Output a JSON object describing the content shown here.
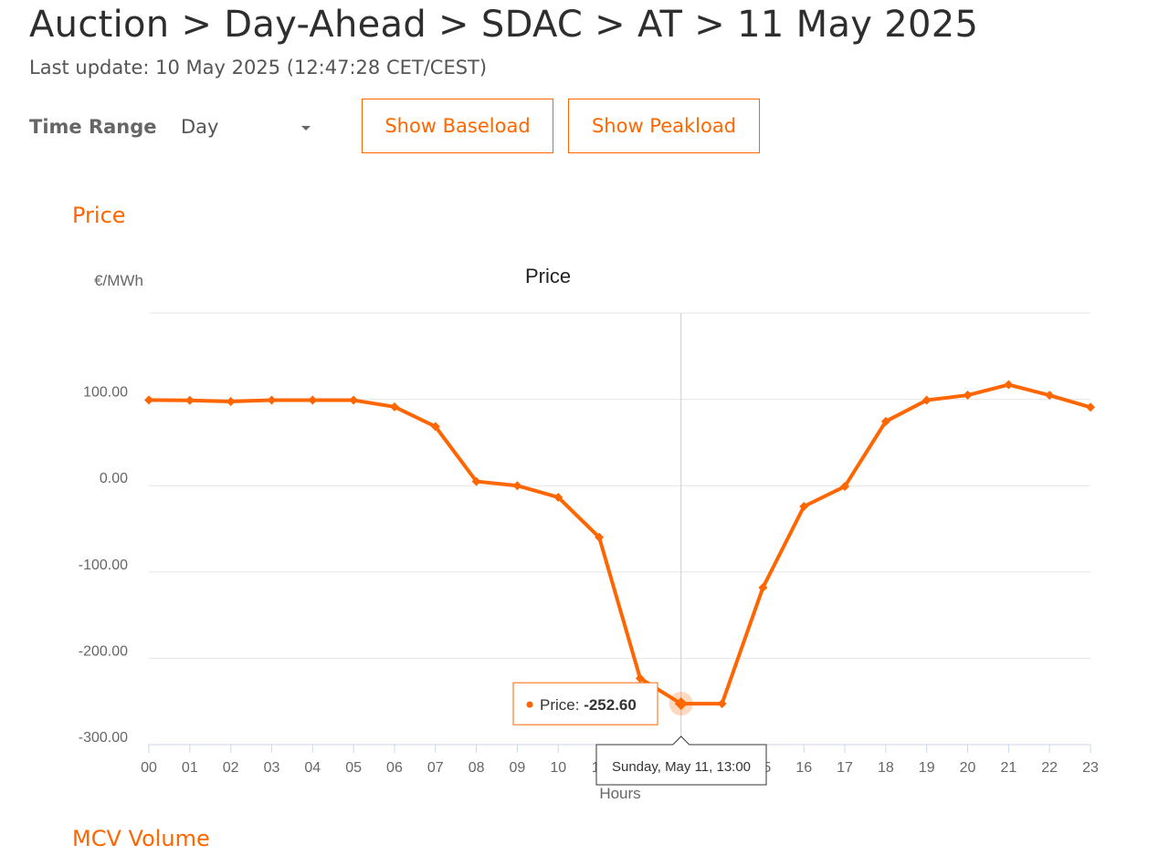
{
  "header": {
    "breadcrumb": "Auction > Day-Ahead > SDAC > AT > 11 May 2025",
    "last_update": "Last update: 10 May 2025 (12:47:28 CET/CEST)"
  },
  "controls": {
    "time_range_label": "Time Range",
    "time_range_value": "Day",
    "show_baseload": "Show Baseload",
    "show_peakload": "Show Peakload"
  },
  "sections": {
    "price": "Price",
    "mcv_volume": "MCV Volume"
  },
  "colors": {
    "accent": "#ff6600",
    "grid": "#e6e6e6",
    "axis": "#ccd6eb"
  },
  "chart_data": {
    "type": "line",
    "title": "Price",
    "ylabel": "€/MWh",
    "xlabel": "Hours",
    "ylim": [
      -300,
      200
    ],
    "yticks": [
      -300,
      -200,
      -100,
      0,
      100
    ],
    "ytick_labels": [
      "-300.00",
      "-200.00",
      "-100.00",
      "0.00",
      "100.00"
    ],
    "categories": [
      "00",
      "01",
      "02",
      "03",
      "04",
      "05",
      "06",
      "07",
      "08",
      "09",
      "10",
      "11",
      "12",
      "13",
      "14",
      "15",
      "16",
      "17",
      "18",
      "19",
      "20",
      "21",
      "22",
      "23"
    ],
    "series": [
      {
        "name": "Price",
        "color": "#ff6600",
        "values": [
          99.2,
          98.8,
          97.5,
          99.0,
          99.1,
          99.0,
          91.3,
          68.5,
          4.9,
          0.0,
          -13.5,
          -59.8,
          -223.2,
          -252.6,
          -252.6,
          -118.0,
          -24.1,
          -0.9,
          74.4,
          99.0,
          104.8,
          117.0,
          104.7,
          90.8
        ]
      }
    ],
    "grid": true,
    "tooltip": {
      "category": "13",
      "header": "Sunday, May 11, 13:00",
      "label": "Price: ",
      "value": "-252.60"
    }
  }
}
